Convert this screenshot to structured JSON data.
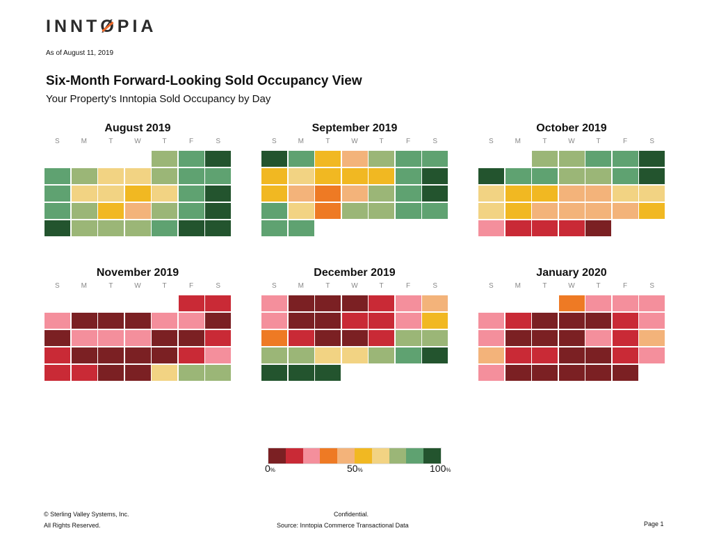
{
  "logo": {
    "text": "INNTOPIA",
    "accent": "#ef6a2a"
  },
  "as_of": "As of August 11, 2019",
  "title": "Six-Month Forward-Looking Sold Occupancy View",
  "subtitle": "Your Property's Inntopia Sold Occupancy by Day",
  "weekdays": [
    "S",
    "M",
    "T",
    "W",
    "T",
    "F",
    "S"
  ],
  "chart_data": {
    "type": "heatmap",
    "scale": {
      "colors": [
        "#7b2023",
        "#c92a36",
        "#f48f9c",
        "#ee7a24",
        "#f3b37a",
        "#f1b822",
        "#f2d383",
        "#9bb677",
        "#5fa271",
        "#23542e"
      ],
      "min_label": "0",
      "mid_label": "50",
      "max_label": "100",
      "unit": "%"
    },
    "months": [
      {
        "name": "August 2019",
        "rows": [
          [
            null,
            null,
            null,
            null,
            7,
            8,
            9
          ],
          [
            8,
            7,
            6,
            6,
            7,
            8,
            8
          ],
          [
            8,
            6,
            6,
            5,
            6,
            8,
            9
          ],
          [
            8,
            7,
            5,
            4,
            7,
            8,
            9
          ],
          [
            9,
            7,
            7,
            7,
            8,
            9,
            9
          ]
        ]
      },
      {
        "name": "September 2019",
        "rows": [
          [
            9,
            8,
            5,
            4,
            7,
            8,
            8
          ],
          [
            5,
            6,
            5,
            5,
            5,
            8,
            9
          ],
          [
            5,
            4,
            3,
            4,
            7,
            8,
            9
          ],
          [
            8,
            6,
            3,
            7,
            7,
            8,
            8
          ],
          [
            8,
            8
          ]
        ]
      },
      {
        "name": "October 2019",
        "rows": [
          [
            null,
            null,
            7,
            7,
            8,
            8,
            9
          ],
          [
            9,
            8,
            8,
            7,
            7,
            8,
            9
          ],
          [
            6,
            5,
            5,
            4,
            4,
            6,
            6
          ],
          [
            6,
            5,
            4,
            4,
            4,
            4,
            5
          ],
          [
            2,
            1,
            1,
            1,
            0
          ]
        ]
      },
      {
        "name": "November 2019",
        "rows": [
          [
            null,
            null,
            null,
            null,
            null,
            1,
            1
          ],
          [
            2,
            0,
            0,
            0,
            2,
            2,
            0
          ],
          [
            0,
            2,
            2,
            2,
            0,
            0,
            1
          ],
          [
            1,
            0,
            0,
            0,
            0,
            1,
            2
          ],
          [
            1,
            1,
            0,
            0,
            6,
            7,
            7
          ]
        ]
      },
      {
        "name": "December 2019",
        "rows": [
          [
            2,
            0,
            0,
            0,
            1,
            2,
            4
          ],
          [
            2,
            0,
            0,
            1,
            1,
            2,
            5
          ],
          [
            3,
            1,
            0,
            0,
            1,
            7,
            7
          ],
          [
            7,
            7,
            6,
            6,
            7,
            8,
            9
          ],
          [
            9,
            9,
            9
          ]
        ]
      },
      {
        "name": "January 2020",
        "rows": [
          [
            null,
            null,
            null,
            3,
            2,
            2,
            2
          ],
          [
            2,
            1,
            0,
            0,
            0,
            1,
            2
          ],
          [
            2,
            0,
            0,
            0,
            2,
            1,
            4
          ],
          [
            4,
            1,
            1,
            0,
            0,
            1,
            2
          ],
          [
            2,
            0,
            0,
            0,
            0,
            0
          ]
        ]
      }
    ]
  },
  "footer": {
    "copyright": "© Sterling Valley Systems, Inc.",
    "rights": "All Rights Reserved.",
    "confidential": "Confidential.",
    "source": "Source:  Inntopia Commerce Transactional Data",
    "page": "Page 1"
  }
}
